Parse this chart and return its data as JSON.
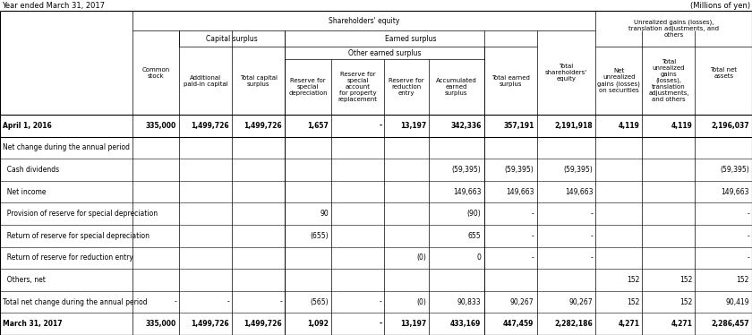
{
  "title_left": "Year ended March 31, 2017",
  "title_right": "(Millions of yen)",
  "rows": [
    {
      "label": "April 1, 2016",
      "bold": true,
      "values": [
        "335,000",
        "1,499,726",
        "1,499,726",
        "1,657",
        "-",
        "13,197",
        "342,336",
        "357,191",
        "2,191,918",
        "4,119",
        "4,119",
        "2,196,037"
      ]
    },
    {
      "label": "Net change during the annual period",
      "bold": false,
      "values": [
        "",
        "",
        "",
        "",
        "",
        "",
        "",
        "",
        "",
        "",
        "",
        ""
      ]
    },
    {
      "label": "  Cash dividends",
      "bold": false,
      "values": [
        "",
        "",
        "",
        "",
        "",
        "",
        "(59,395)",
        "(59,395)",
        "(59,395)",
        "",
        "",
        "(59,395)"
      ]
    },
    {
      "label": "  Net income",
      "bold": false,
      "values": [
        "",
        "",
        "",
        "",
        "",
        "",
        "149,663",
        "149,663",
        "149,663",
        "",
        "",
        "149,663"
      ]
    },
    {
      "label": "  Provision of reserve for special depreciation",
      "bold": false,
      "values": [
        "",
        "",
        "",
        "90",
        "",
        "",
        "(90)",
        "-",
        "-",
        "",
        "",
        "-"
      ]
    },
    {
      "label": "  Return of reserve for special depreciation",
      "bold": false,
      "values": [
        "",
        "",
        "",
        "(655)",
        "",
        "",
        "655",
        "-",
        "-",
        "",
        "",
        "-"
      ]
    },
    {
      "label": "  Return of reserve for reduction entry",
      "bold": false,
      "values": [
        "",
        "",
        "",
        "",
        "",
        "(0)",
        "0",
        "-",
        "-",
        "",
        "",
        "-"
      ]
    },
    {
      "label": "  Others, net",
      "bold": false,
      "values": [
        "",
        "",
        "",
        "",
        "",
        "",
        "",
        "",
        "",
        "152",
        "152",
        "152"
      ]
    },
    {
      "label": "Total net change during the annual period",
      "bold": false,
      "values": [
        "-",
        "-",
        "-",
        "(565)",
        "-",
        "(0)",
        "90,833",
        "90,267",
        "90,267",
        "152",
        "152",
        "90,419"
      ]
    },
    {
      "label": "March 31, 2017",
      "bold": true,
      "values": [
        "335,000",
        "1,499,726",
        "1,499,726",
        "1,092",
        "-",
        "13,197",
        "433,169",
        "447,459",
        "2,282,186",
        "4,271",
        "4,271",
        "2,286,457"
      ]
    }
  ],
  "col_labels": [
    "Common\nstock",
    "Additional\npaid-in capital",
    "Total capital\nsurplus",
    "Reserve for\nspecial\ndepreciation",
    "Reserve for\nspecial\naccount\nfor property\nreplacement",
    "Reserve for\nreduction\nentry",
    "Accumulated\nearned\nsurplus",
    "Total earned\nsurplus",
    "Total\nshareholders'\nequity",
    "Net\nunrealized\ngains (losses)\non securities",
    "Total\nunrealized\ngains\n(losses),\ntranslation\nadjustments,\nand others",
    "Total net\nassets"
  ],
  "font_size_title": 6.0,
  "font_size_header": 5.0,
  "font_size_data": 5.5
}
